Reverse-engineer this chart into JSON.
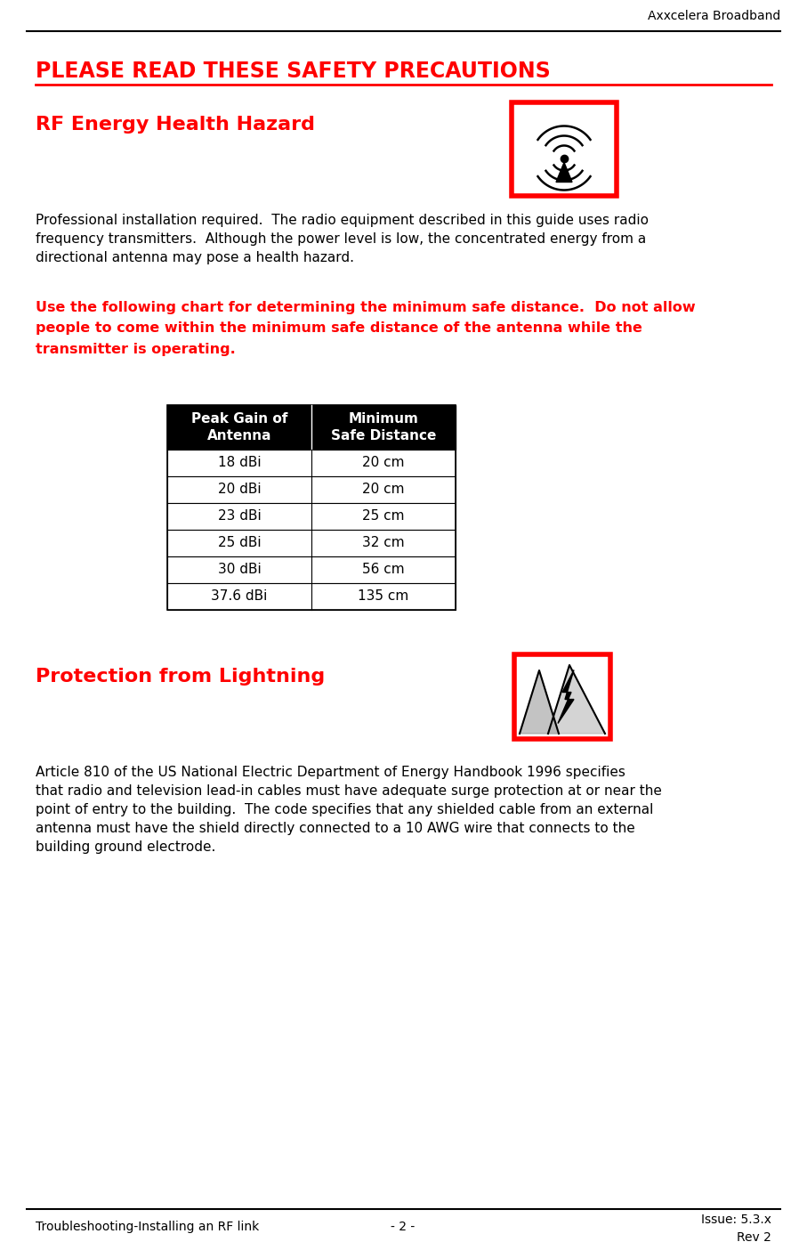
{
  "header_company": "Axxcelera Broadband",
  "title": "PLEASE READ THESE SAFETY PRECAUTIONS",
  "section1_heading": "RF Energy Health Hazard",
  "section1_body": "Professional installation required.  The radio equipment described in this guide uses radio\nfrequency transmitters.  Although the power level is low, the concentrated energy from a\ndirectional antenna may pose a health hazard.",
  "section1_warning": "Use the following chart for determining the minimum safe distance.  Do not allow\npeople to come within the minimum safe distance of the antenna while the\ntransmitter is operating.",
  "table_headers": [
    "Peak Gain of\nAntenna",
    "Minimum\nSafe Distance"
  ],
  "table_rows": [
    [
      "18 dBi",
      "20 cm"
    ],
    [
      "20 dBi",
      "20 cm"
    ],
    [
      "23 dBi",
      "25 cm"
    ],
    [
      "25 dBi",
      "32 cm"
    ],
    [
      "30 dBi",
      "56 cm"
    ],
    [
      "37.6 dBi",
      "135 cm"
    ]
  ],
  "section2_heading": "Protection from Lightning",
  "section2_body": "Article 810 of the US National Electric Department of Energy Handbook 1996 specifies\nthat radio and television lead-in cables must have adequate surge protection at or near the\npoint of entry to the building.  The code specifies that any shielded cable from an external\nantenna must have the shield directly connected to a 10 AWG wire that connects to the\nbuilding ground electrode.",
  "footer_left": "Troubleshooting-Installing an RF link",
  "footer_center": "- 2 -",
  "footer_right_line1": "Issue: 5.3.x",
  "footer_right_line2": "Rev 2",
  "red": "#ff0000",
  "black": "#000000",
  "white": "#ffffff",
  "bg": "#ffffff"
}
